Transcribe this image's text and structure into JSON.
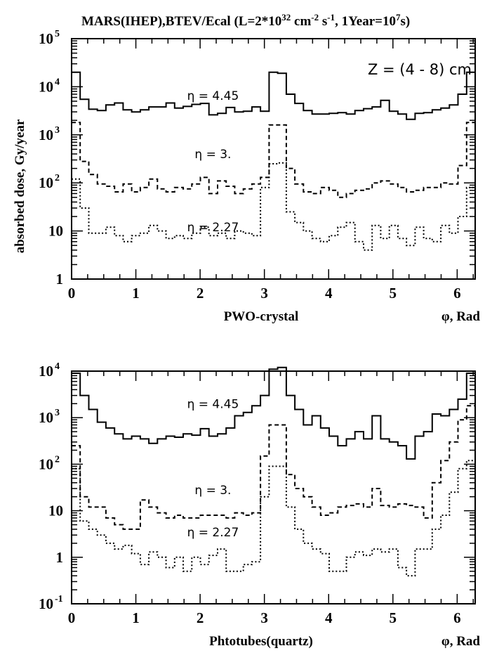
{
  "chart_data": [
    {
      "type": "line",
      "title": "MARS(IHEP),BTEV/Ecal (L=2*10^32 cm^-2 s^-1, 1Year=10^7s)",
      "ylabel": "absorbed dose, Gy/year",
      "xlabel": "PWO-crystal",
      "xlabel_right": "φ, Rad",
      "annotation": "Z = (4 - 8) cm",
      "yscale": "log",
      "xlim": [
        0,
        6.28
      ],
      "ylim": [
        1,
        100000
      ],
      "xticks": [
        "0",
        "1",
        "2",
        "3",
        "4",
        "5",
        "6"
      ],
      "yticks": [
        {
          "value": 1,
          "label": "1"
        },
        {
          "value": 10,
          "label": "10"
        },
        {
          "value": 100,
          "label": "10",
          "exp": "2"
        },
        {
          "value": 1000,
          "label": "10",
          "exp": "3"
        },
        {
          "value": 10000,
          "label": "10",
          "exp": "4"
        },
        {
          "value": 100000,
          "label": "10",
          "exp": "5"
        }
      ],
      "series": [
        {
          "label": "η = 4.45",
          "label_pos": [
            2.2,
            6500
          ],
          "style": "solid",
          "values": [
            20000,
            5500,
            3400,
            3200,
            4200,
            4600,
            3300,
            3000,
            3300,
            3800,
            3800,
            4600,
            3600,
            3900,
            4300,
            4500,
            2600,
            2800,
            3700,
            3000,
            3100,
            3800,
            3100,
            20000,
            19000,
            7000,
            4500,
            3200,
            2700,
            2700,
            2800,
            2900,
            2700,
            3200,
            3500,
            3800,
            5200,
            3100,
            2700,
            2100,
            2800,
            2900,
            3300,
            3600,
            4200,
            7000,
            20000
          ]
        },
        {
          "label": "η = 3.",
          "label_pos": [
            2.2,
            400
          ],
          "style": "dashed",
          "values": [
            1800,
            280,
            150,
            95,
            85,
            65,
            95,
            65,
            80,
            120,
            75,
            65,
            80,
            75,
            95,
            130,
            60,
            110,
            85,
            60,
            75,
            95,
            130,
            1600,
            1600,
            200,
            95,
            65,
            60,
            80,
            70,
            50,
            60,
            70,
            75,
            100,
            110,
            95,
            80,
            65,
            70,
            80,
            80,
            100,
            95,
            230,
            1800
          ]
        },
        {
          "label": "η = 2.27",
          "label_pos": [
            2.2,
            12
          ],
          "style": "dotted",
          "values": [
            120,
            30,
            9,
            9,
            12,
            8,
            6,
            8,
            9,
            13,
            10,
            7,
            8,
            7,
            9,
            12,
            8,
            9,
            7,
            10,
            9,
            8,
            80,
            250,
            260,
            25,
            15,
            10,
            7,
            6,
            8,
            12,
            15,
            6,
            4,
            13,
            7,
            13,
            7,
            5,
            12,
            7,
            6,
            13,
            9,
            20,
            80
          ]
        }
      ]
    },
    {
      "type": "line",
      "xlabel": "Phtotubes(quartz)",
      "xlabel_right": "φ, Rad",
      "yscale": "log",
      "xlim": [
        0,
        6.28
      ],
      "ylim": [
        0.1,
        10000
      ],
      "xticks": [
        "0",
        "1",
        "2",
        "3",
        "4",
        "5",
        "6"
      ],
      "yticks": [
        {
          "value": 0.1,
          "label": "10",
          "exp": "-1"
        },
        {
          "value": 1,
          "label": "1"
        },
        {
          "value": 10,
          "label": "10"
        },
        {
          "value": 100,
          "label": "10",
          "exp": "2"
        },
        {
          "value": 1000,
          "label": "10",
          "exp": "3"
        },
        {
          "value": 10000,
          "label": "10",
          "exp": "4"
        }
      ],
      "series": [
        {
          "label": "η = 4.45",
          "label_pos": [
            2.2,
            2000
          ],
          "style": "solid",
          "values": [
            9000,
            3000,
            1500,
            800,
            600,
            450,
            350,
            400,
            350,
            280,
            350,
            400,
            380,
            450,
            420,
            580,
            400,
            450,
            600,
            1100,
            1300,
            1800,
            3000,
            11000,
            12000,
            3000,
            1500,
            700,
            1100,
            600,
            400,
            250,
            350,
            500,
            350,
            1100,
            350,
            300,
            250,
            130,
            400,
            500,
            1200,
            1100,
            1500,
            2500,
            9000
          ]
        },
        {
          "label": "η = 3.",
          "label_pos": [
            2.2,
            28
          ],
          "style": "dashed",
          "values": [
            250,
            20,
            12,
            12,
            7,
            5,
            4,
            4,
            17,
            12,
            9,
            7,
            8,
            7,
            7,
            8,
            8,
            8,
            7,
            9,
            8,
            9,
            150,
            700,
            700,
            60,
            30,
            20,
            12,
            8,
            9,
            12,
            13,
            14,
            12,
            30,
            13,
            12,
            14,
            13,
            12,
            7,
            40,
            120,
            300,
            900,
            1800
          ]
        },
        {
          "label": "η = 2.27",
          "label_pos": [
            2.2,
            3.5
          ],
          "style": "dotted",
          "values": [
            80,
            6,
            4,
            3,
            2,
            1.5,
            1.8,
            1.2,
            0.7,
            1.3,
            1,
            0.6,
            1,
            0.5,
            1,
            0.7,
            1.1,
            1.5,
            0.5,
            0.5,
            0.7,
            0.8,
            20,
            90,
            90,
            12,
            4,
            2,
            1.5,
            1.2,
            0.5,
            0.5,
            1,
            1.3,
            1.1,
            1.5,
            1.3,
            1.5,
            0.6,
            0.4,
            1.5,
            1.5,
            4,
            8,
            25,
            80,
            120
          ]
        }
      ]
    }
  ]
}
